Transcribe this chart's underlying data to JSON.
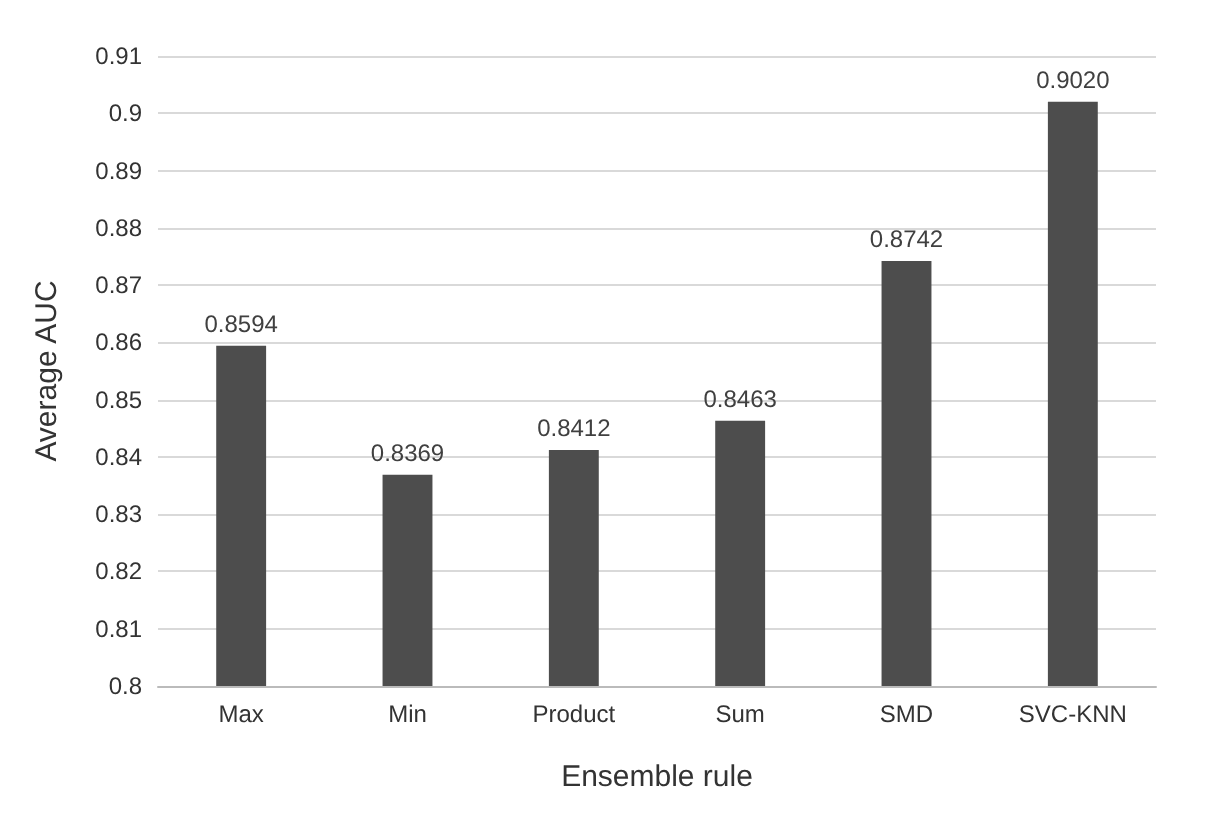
{
  "chart_data": {
    "type": "bar",
    "xlabel": "Ensemble rule",
    "ylabel": "Average AUC",
    "categories": [
      "Max",
      "Min",
      "Product",
      "Sum",
      "SMD",
      "SVC-KNN"
    ],
    "values": [
      0.8594,
      0.8369,
      0.8412,
      0.8463,
      0.8742,
      0.902
    ],
    "value_labels": [
      "0.8594",
      "0.8369",
      "0.8412",
      "0.8463",
      "0.8742",
      "0.9020"
    ],
    "color": "#4d4d4d",
    "ylim": [
      0.8,
      0.91
    ],
    "yticks": [
      0.8,
      0.81,
      0.82,
      0.83,
      0.84,
      0.85,
      0.86,
      0.87,
      0.88,
      0.89,
      0.9,
      0.91
    ],
    "grid": "y"
  }
}
